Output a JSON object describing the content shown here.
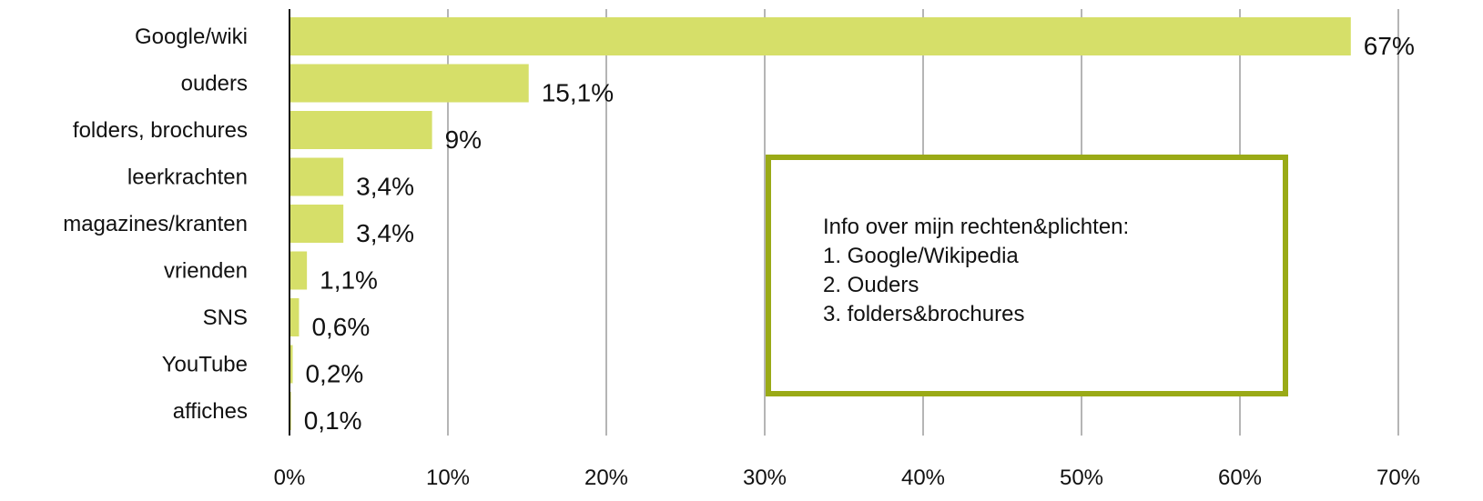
{
  "chart_data": {
    "type": "bar",
    "orientation": "horizontal",
    "categories": [
      "Google/wiki",
      "ouders",
      "folders, brochures",
      "leerkrachten",
      "magazines/kranten",
      "vrienden",
      "SNS",
      "YouTube",
      "affiches"
    ],
    "values": [
      67,
      15.1,
      9,
      3.4,
      3.4,
      1.1,
      0.6,
      0.2,
      0.1
    ],
    "value_labels": [
      "67%",
      "15,1%",
      "9%",
      "3,4%",
      "3,4%",
      "1,1%",
      "0,6%",
      "0,2%",
      "0,1%"
    ],
    "x_ticks": [
      0,
      10,
      20,
      30,
      40,
      50,
      60,
      70
    ],
    "x_tick_labels": [
      "0%",
      "10%",
      "20%",
      "30%",
      "40%",
      "50%",
      "60%",
      "70%"
    ],
    "xlim": [
      0,
      70
    ],
    "grid": "vertical",
    "title": "",
    "xlabel": "",
    "ylabel": "",
    "colors": {
      "bar": "#d6df69",
      "grid": "#b5b5b5",
      "axis": "#111111",
      "annotation_border": "#9aaa16"
    }
  },
  "annotation": {
    "lines": [
      "Info over mijn rechten&plichten:",
      "1. Google/Wikipedia",
      "2. Ouders",
      "3. folders&brochures"
    ]
  }
}
